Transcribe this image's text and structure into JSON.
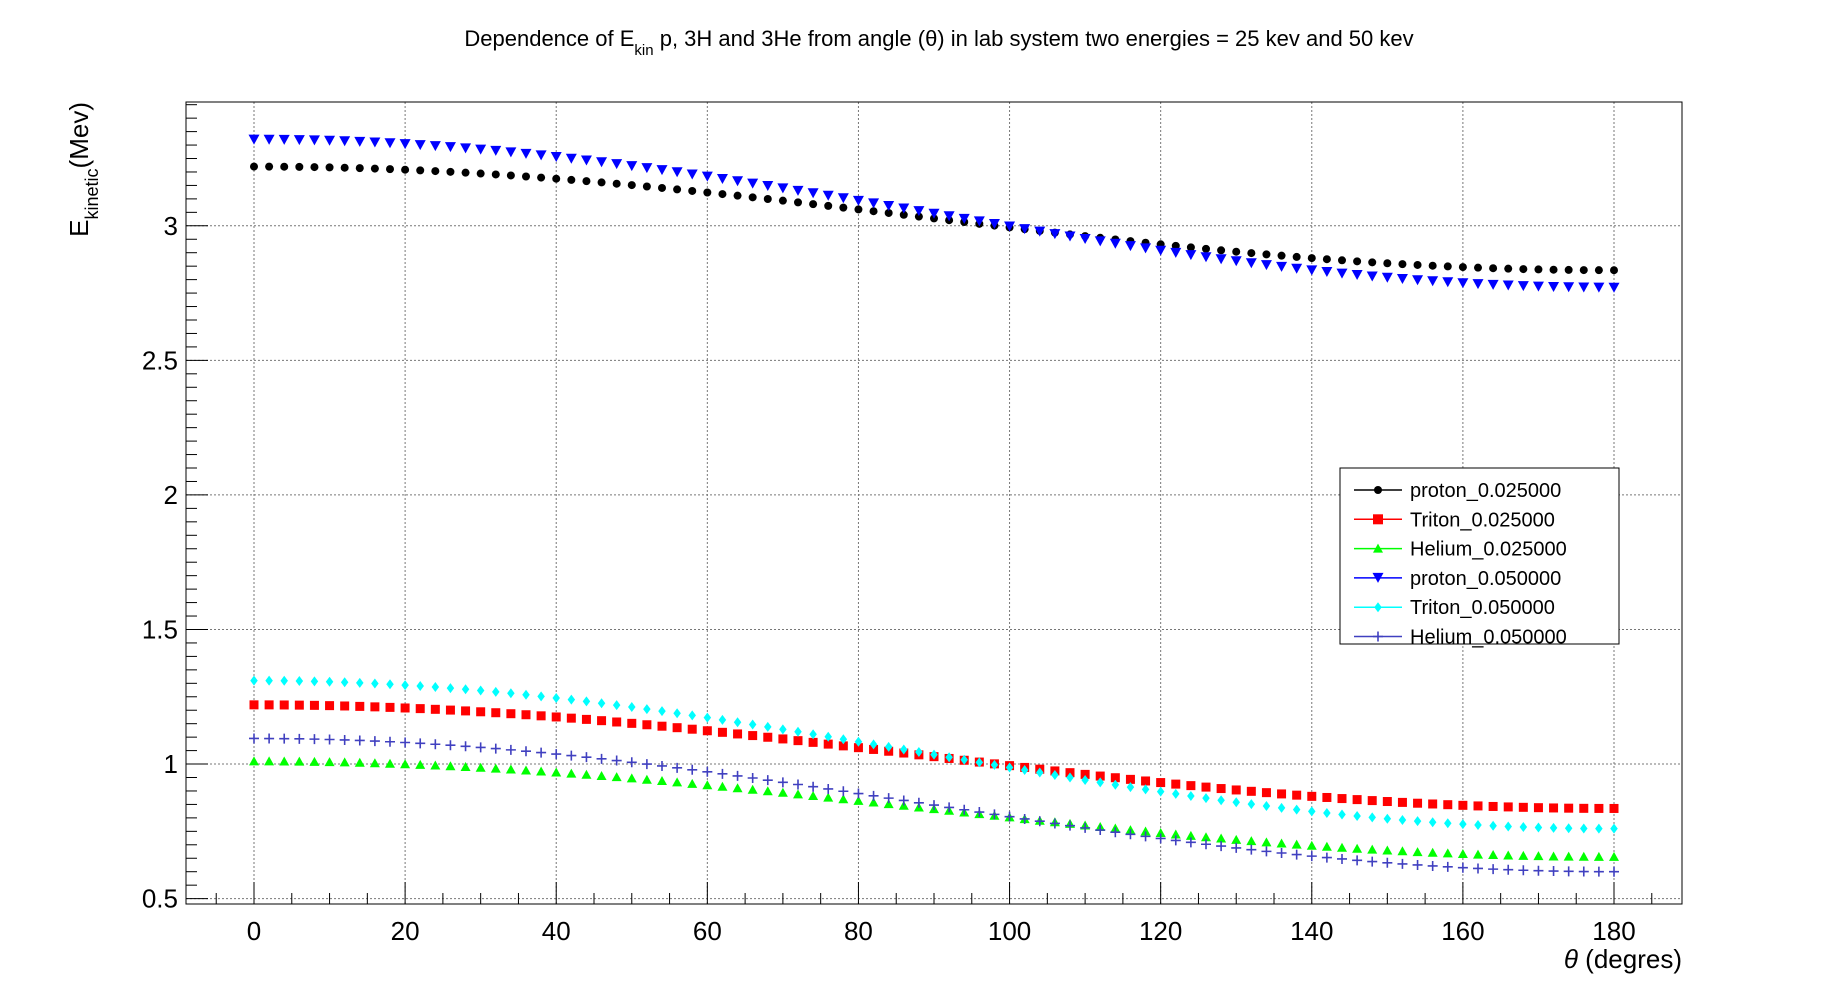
{
  "chart_data": {
    "type": "scatter",
    "title": {
      "prefix": "Dependence of E",
      "sub": "kin",
      "suffix": " p, 3H and 3He from angle (θ) in lab system two energies = 25 kev and 50 kev"
    },
    "xlabel": {
      "symbol": "θ",
      "text": " (degres)"
    },
    "ylabel": {
      "main": "E",
      "sub": "kinetic",
      "suffix": "(Mev)"
    },
    "xlim": [
      -9,
      189
    ],
    "ylim": [
      0.48,
      3.46
    ],
    "x_ticks": [
      0,
      20,
      40,
      60,
      80,
      100,
      120,
      140,
      160,
      180
    ],
    "x_tick_labels": [
      "0",
      "20",
      "40",
      "60",
      "80",
      "100",
      "120",
      "140",
      "160",
      "180"
    ],
    "y_ticks": [
      0.5,
      1,
      1.5,
      2,
      2.5,
      3
    ],
    "y_tick_labels": [
      "0.5",
      "1",
      "1.5",
      "2",
      "2.5",
      "3"
    ],
    "grid": true,
    "legend_position": "right-center",
    "x_range": {
      "start": 0,
      "stop": 180,
      "step": 2
    },
    "series": [
      {
        "name": "proton_0.025000",
        "color": "#000000",
        "marker": "circle",
        "y_start": 3.22,
        "y_end": 2.835
      },
      {
        "name": "Triton_0.025000",
        "color": "#ff0000",
        "marker": "square",
        "y_start": 1.22,
        "y_end": 0.835
      },
      {
        "name": "Helium_0.025000",
        "color": "#00ff00",
        "marker": "triangle-up",
        "y_start": 1.01,
        "y_end": 0.655
      },
      {
        "name": "proton_0.050000",
        "color": "#0000ff",
        "marker": "triangle-down",
        "y_start": 3.32,
        "y_end": 2.77
      },
      {
        "name": "Triton_0.050000",
        "color": "#00ffff",
        "marker": "diamond",
        "y_start": 1.31,
        "y_end": 0.76
      },
      {
        "name": "Helium_0.050000",
        "color": "#4040c0",
        "marker": "plus",
        "y_start": 1.095,
        "y_end": 0.6
      }
    ]
  }
}
